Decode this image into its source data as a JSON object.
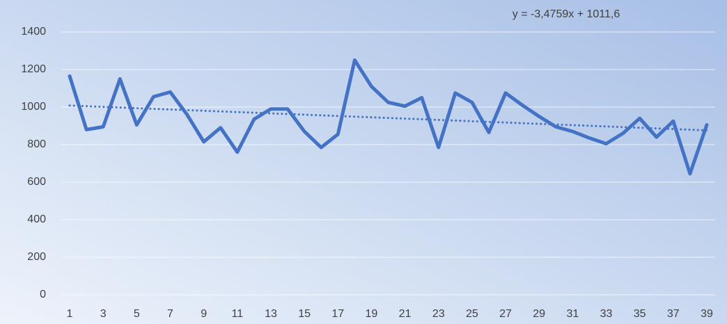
{
  "chart_data": {
    "type": "line",
    "annotation": "y = -3,4759x + 1011,6",
    "trendline": {
      "slope": -3.4759,
      "intercept": 1011.6,
      "color": "#4472c4"
    },
    "categories": [
      1,
      null,
      3,
      null,
      5,
      null,
      7,
      null,
      9,
      null,
      11,
      null,
      13,
      null,
      15,
      null,
      17,
      null,
      19,
      null,
      21,
      null,
      23,
      null,
      25,
      null,
      27,
      null,
      29,
      null,
      31,
      null,
      33,
      null,
      35,
      null,
      37,
      null,
      39
    ],
    "series": [
      {
        "color": "#4472c4",
        "values": [
          1165,
          880,
          895,
          1150,
          905,
          1055,
          1080,
          960,
          815,
          890,
          760,
          935,
          990,
          990,
          870,
          785,
          855,
          1250,
          1110,
          1025,
          1005,
          1050,
          785,
          1075,
          1025,
          865,
          1075,
          1010,
          950,
          895,
          870,
          835,
          805,
          860,
          940,
          840,
          925,
          645,
          905
        ]
      }
    ],
    "ylim": [
      0,
      1400
    ],
    "yticks": [
      0,
      200,
      400,
      600,
      800,
      1000,
      1200,
      1400
    ],
    "grid": true
  }
}
